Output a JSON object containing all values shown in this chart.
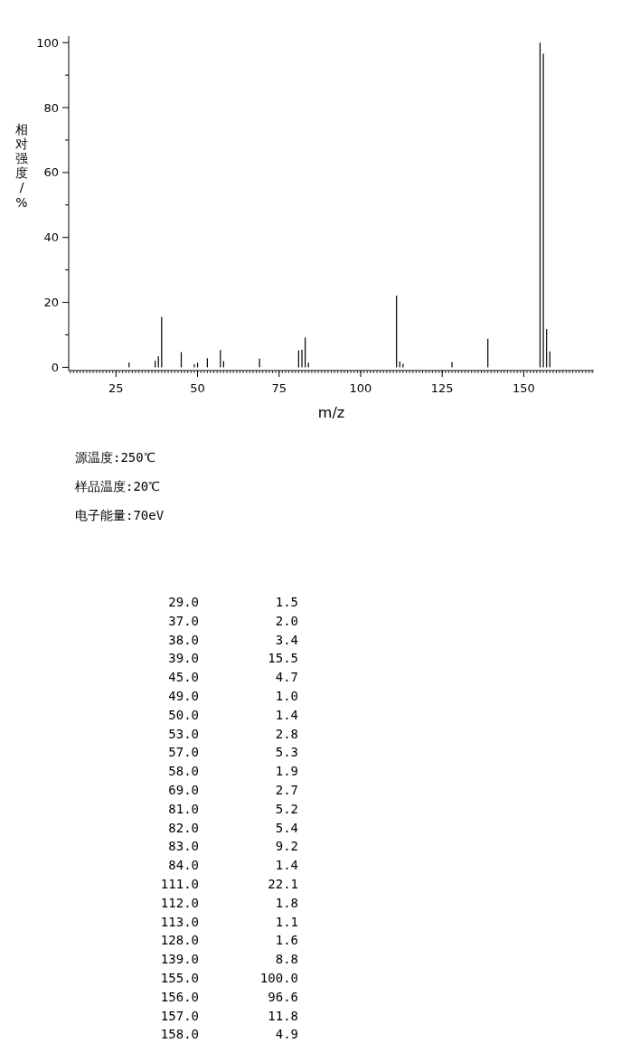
{
  "chart_data": {
    "type": "bar",
    "xlabel": "m/z",
    "ylabel": "相对强度/%",
    "x": [
      29,
      37,
      38,
      39,
      45,
      49,
      50,
      53,
      57,
      58,
      69,
      81,
      82,
      83,
      84,
      111,
      112,
      113,
      128,
      139,
      155,
      156,
      157,
      158
    ],
    "values": [
      1.5,
      2.0,
      3.4,
      15.5,
      4.7,
      1.0,
      1.4,
      2.8,
      5.3,
      1.9,
      2.7,
      5.2,
      5.4,
      9.2,
      1.4,
      22.1,
      1.8,
      1.1,
      1.6,
      8.8,
      100,
      96.6,
      11.8,
      4.9
    ],
    "color": "#000000",
    "xlim": [
      10.5,
      171.5
    ],
    "ylim": [
      -1,
      102
    ],
    "xticks": [
      25,
      50,
      75,
      100,
      125,
      150
    ],
    "yticks": [
      0,
      {
        "value": 10,
        "label": null
      },
      20,
      {
        "value": 30,
        "label": null
      },
      40,
      {
        "value": 50,
        "label": null
      },
      60,
      {
        "value": 70,
        "label": null
      },
      80,
      {
        "value": 90,
        "label": null
      },
      100
    ],
    "annotations": [
      "源温度:250℃",
      "样品温度:20℃",
      "电子能量:70eV",
      "29.0",
      "1.5",
      "37.0",
      "2.0",
      "38.0",
      "3.4",
      "39.0",
      "15.5",
      "45.0",
      "4.7",
      "49.0",
      "1.0",
      "50.0",
      "1.4",
      "53.0",
      "2.8",
      "57.0",
      "5.3",
      "58.0",
      "1.9",
      "69.0",
      "2.7",
      "81.0",
      "5.2",
      "82.0",
      "5.4",
      "83.0",
      "9.2",
      "84.0",
      "1.4",
      "111.0",
      "22.1",
      "112.0",
      "1.8",
      "113.0",
      "1.1",
      "128.0",
      "1.6",
      "139.0",
      "8.8",
      "155.0",
      "100.0",
      "156.0",
      "96.6",
      "157.0",
      "11.8",
      "158.0",
      "4.9"
    ]
  }
}
